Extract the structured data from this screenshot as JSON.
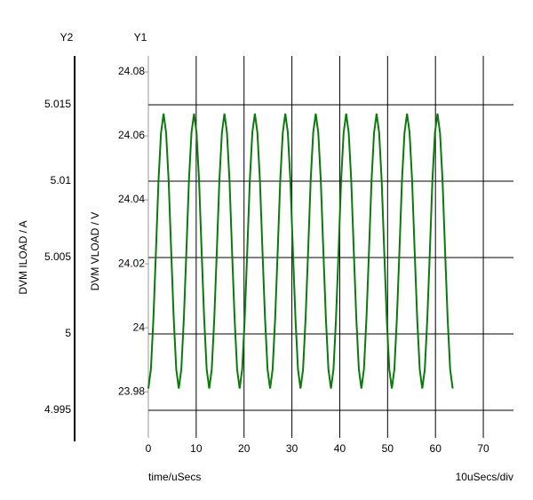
{
  "chart_data": {
    "type": "line",
    "y2_header": "Y2",
    "y1_header": "Y1",
    "ylabel": "DVM VLOAD / V",
    "y2label": "DVM ILOAD / A",
    "xlabel": "time/uSecs",
    "xscale_note": "10uSecs/div",
    "xlim": [
      0,
      76.3
    ],
    "xticks": [
      0,
      10,
      20,
      30,
      40,
      50,
      60,
      70
    ],
    "ylim": [
      23.9656,
      24.085
    ],
    "yticks": [
      24.08,
      24.06,
      24.04,
      24.02,
      24,
      23.98
    ],
    "y2lim": [
      4.9932,
      5.0182
    ],
    "y2ticks": [
      5.015,
      5.01,
      5.005,
      5,
      4.995
    ],
    "grid": true,
    "series": [
      {
        "color": "#0a7a0a",
        "x": [
          0,
          0.53,
          1.06,
          1.59,
          2.12,
          2.65,
          3.18,
          3.71,
          4.24,
          4.77,
          5.3,
          5.83,
          6.36,
          6.89,
          7.42,
          7.95,
          8.48,
          9.01,
          9.54,
          10.07,
          10.6,
          11.13,
          11.66,
          12.19,
          12.72,
          13.25,
          13.78,
          14.31,
          14.84,
          15.37,
          15.9,
          16.43,
          16.96,
          17.49,
          18.02,
          18.55,
          19.08,
          19.61,
          20.14,
          20.67,
          21.2,
          21.73,
          22.26,
          22.79,
          23.32,
          23.85,
          24.38,
          24.91,
          25.44,
          25.97,
          26.5,
          27.03,
          27.56,
          28.09,
          28.62,
          29.15,
          29.68,
          30.21,
          30.74,
          31.27,
          31.8,
          32.33,
          32.86,
          33.39,
          33.92,
          34.45,
          34.98,
          35.51,
          36.04,
          36.57,
          37.1,
          37.63,
          38.16,
          38.69,
          39.22,
          39.75,
          40.28,
          40.81,
          41.34,
          41.87,
          42.4,
          42.93,
          43.46,
          43.99,
          44.52,
          45.05,
          45.58,
          46.11,
          46.64,
          47.17,
          47.7,
          48.23,
          48.76,
          49.29,
          49.82,
          50.35,
          50.88,
          51.41,
          51.94,
          52.47,
          53,
          53.53,
          54.06,
          54.59,
          55.12,
          55.65,
          56.18,
          56.71,
          57.24,
          57.77,
          58.3,
          58.83,
          59.36,
          59.89,
          60.42,
          60.95,
          61.48,
          62.01,
          62.54,
          63.07,
          63.6
        ],
        "values": [
          23.981,
          23.987,
          24.003,
          24.024,
          24.046,
          24.061,
          24.067,
          24.061,
          24.046,
          24.024,
          24.003,
          23.987,
          23.981,
          23.987,
          24.003,
          24.024,
          24.046,
          24.061,
          24.067,
          24.061,
          24.046,
          24.024,
          24.003,
          23.987,
          23.981,
          23.987,
          24.003,
          24.024,
          24.046,
          24.061,
          24.067,
          24.061,
          24.046,
          24.024,
          24.003,
          23.987,
          23.981,
          23.987,
          24.003,
          24.024,
          24.046,
          24.061,
          24.067,
          24.061,
          24.046,
          24.024,
          24.003,
          23.987,
          23.981,
          23.987,
          24.003,
          24.024,
          24.046,
          24.061,
          24.067,
          24.061,
          24.046,
          24.024,
          24.003,
          23.987,
          23.981,
          23.987,
          24.003,
          24.024,
          24.046,
          24.061,
          24.067,
          24.061,
          24.046,
          24.024,
          24.003,
          23.987,
          23.981,
          23.987,
          24.003,
          24.024,
          24.046,
          24.061,
          24.067,
          24.061,
          24.046,
          24.024,
          24.003,
          23.987,
          23.981,
          23.987,
          24.003,
          24.024,
          24.046,
          24.061,
          24.067,
          24.061,
          24.046,
          24.024,
          24.003,
          23.987,
          23.981,
          23.987,
          24.003,
          24.024,
          24.046,
          24.061,
          24.067,
          24.061,
          24.046,
          24.024,
          24.003,
          23.987,
          23.981,
          23.987,
          24.003,
          24.024,
          24.046,
          24.061,
          24.067,
          24.061,
          24.046,
          24.024,
          24.003,
          23.987,
          23.981
        ]
      }
    ]
  }
}
